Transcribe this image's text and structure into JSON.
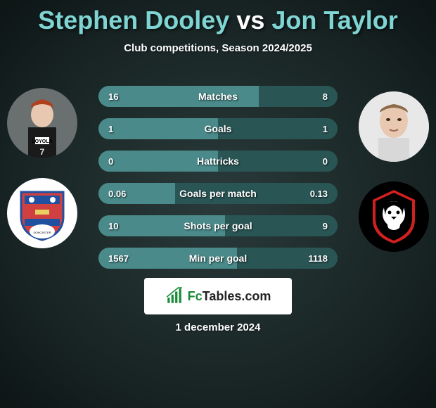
{
  "title": {
    "player1": "Stephen Dooley",
    "vs": "vs",
    "player2": "Jon Taylor"
  },
  "subtitle": "Club competitions, Season 2024/2025",
  "colors": {
    "bar_left": "#4a8a8a",
    "bar_right": "#2a5555",
    "bar_neutral": "#3a6a6a",
    "accent": "#7fd4d4"
  },
  "stats": [
    {
      "label": "Matches",
      "left_val": "16",
      "right_val": "8",
      "left_pct": 67,
      "right_pct": 33
    },
    {
      "label": "Goals",
      "left_val": "1",
      "right_val": "1",
      "left_pct": 50,
      "right_pct": 50
    },
    {
      "label": "Hattricks",
      "left_val": "0",
      "right_val": "0",
      "left_pct": 50,
      "right_pct": 50
    },
    {
      "label": "Goals per match",
      "left_val": "0.06",
      "right_val": "0.13",
      "left_pct": 32,
      "right_pct": 68
    },
    {
      "label": "Shots per goal",
      "left_val": "10",
      "right_val": "9",
      "left_pct": 53,
      "right_pct": 47
    },
    {
      "label": "Min per goal",
      "left_val": "1567",
      "right_val": "1118",
      "left_pct": 58,
      "right_pct": 42
    }
  ],
  "footer": {
    "brand_fc": "Fc",
    "brand_rest": "Tables.com"
  },
  "date": "1 december 2024"
}
